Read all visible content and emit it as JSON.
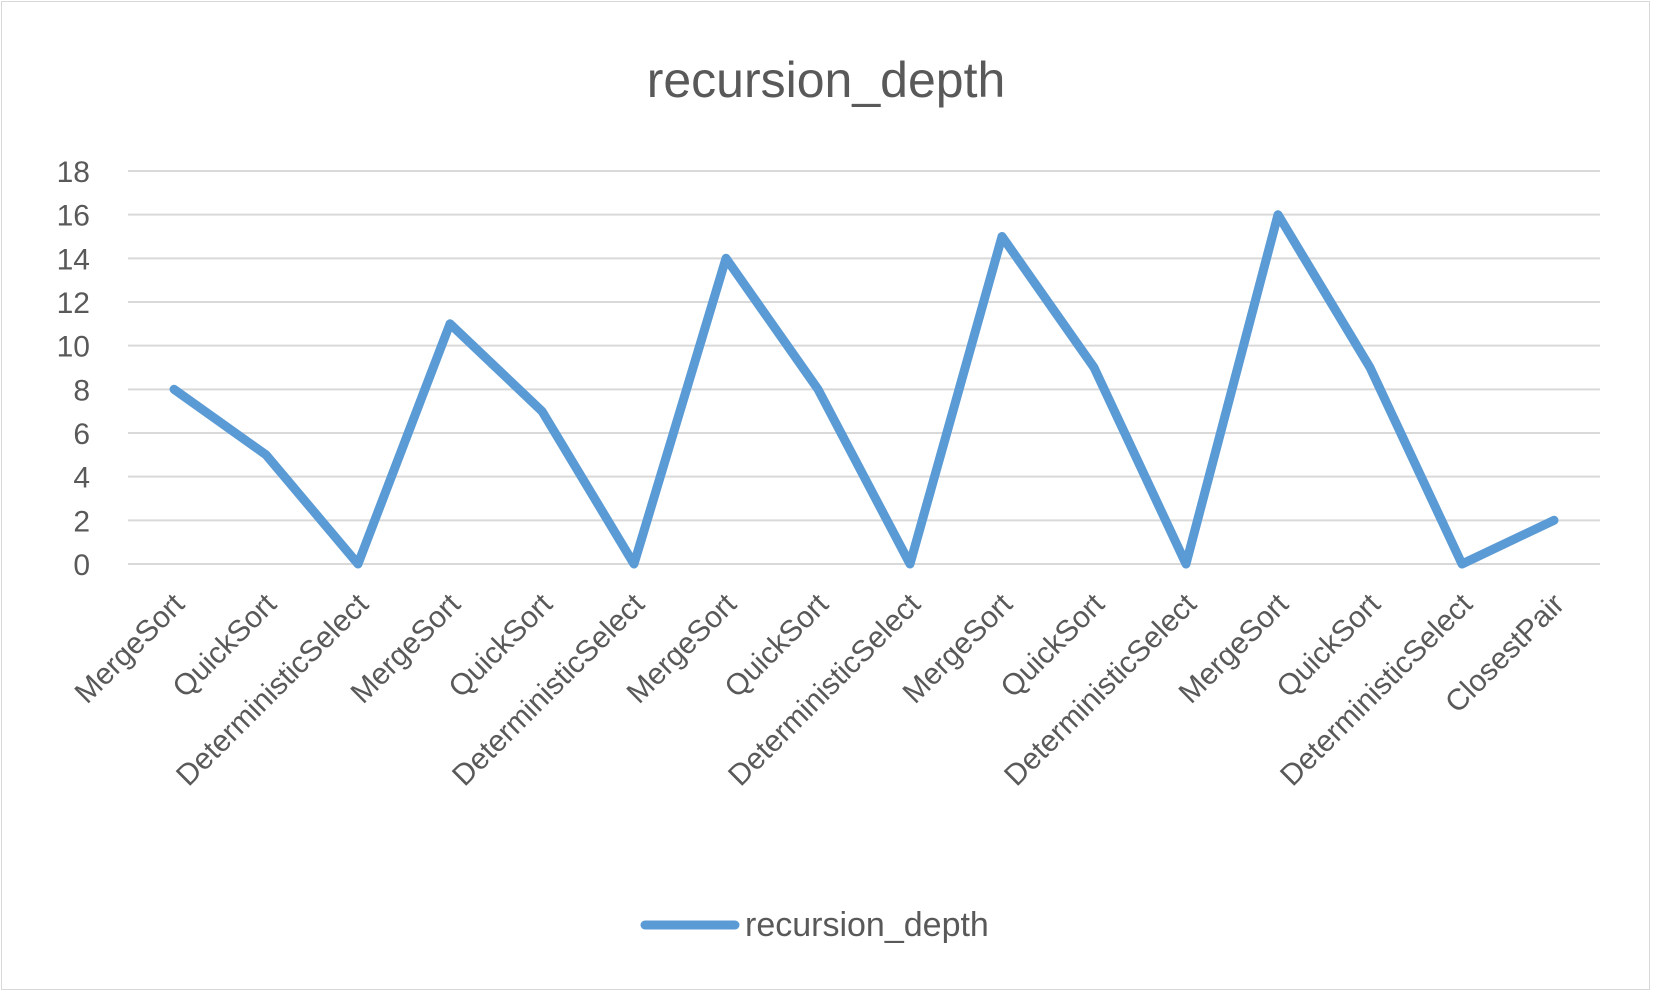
{
  "chart_data": {
    "type": "line",
    "title": "recursion_depth",
    "xlabel": "",
    "ylabel": "",
    "ylim": [
      0,
      18
    ],
    "y_ticks": [
      0,
      2,
      4,
      6,
      8,
      10,
      12,
      14,
      16,
      18
    ],
    "grid": true,
    "legend_position": "bottom",
    "categories": [
      "MergeSort",
      "QuickSort",
      "DeterministicSelect",
      "MergeSort",
      "QuickSort",
      "DeterministicSelect",
      "MergeSort",
      "QuickSort",
      "DeterministicSelect",
      "MergeSort",
      "QuickSort",
      "DeterministicSelect",
      "MergeSort",
      "QuickSort",
      "DeterministicSelect",
      "ClosestPair"
    ],
    "series": [
      {
        "name": "recursion_depth",
        "color": "#5b9bd5",
        "values": [
          8,
          5,
          0,
          11,
          7,
          0,
          14,
          8,
          0,
          15,
          9,
          0,
          16,
          9,
          0,
          2
        ]
      }
    ]
  }
}
